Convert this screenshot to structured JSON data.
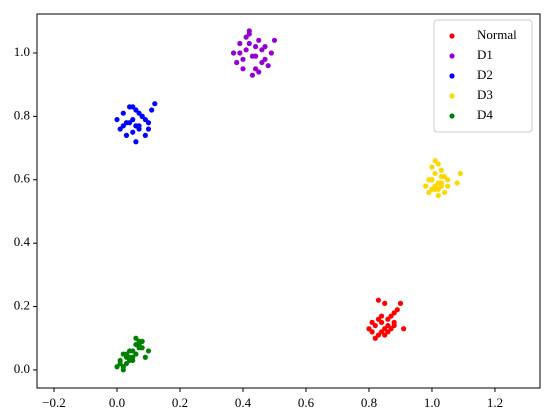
{
  "chart_data": {
    "type": "scatter",
    "xlim": [
      -0.254,
      1.343
    ],
    "ylim": [
      -0.057,
      1.123
    ],
    "xticks": [
      {
        "value": -0.2,
        "label": "−0.2"
      },
      {
        "value": 0,
        "label": "0.0"
      },
      0.2,
      0.4,
      0.6,
      0.8,
      {
        "value": 1,
        "label": "1.0"
      },
      1.2
    ],
    "yticks": [
      {
        "value": 0,
        "label": "0.0"
      },
      0.2,
      0.4,
      0.6,
      0.8,
      {
        "value": 1,
        "label": "1.0"
      }
    ],
    "legend": "upper right",
    "series": [
      {
        "name": "Normal",
        "color": "#ff0000",
        "x": [
          0.81,
          0.82,
          0.83,
          0.84,
          0.85,
          0.86,
          0.87,
          0.88,
          0.89,
          0.9,
          0.82,
          0.84,
          0.86,
          0.88,
          0.83,
          0.85,
          0.87,
          0.81,
          0.84,
          0.86,
          0.91,
          0.83,
          0.85,
          0.88,
          0.8
        ],
        "y": [
          0.12,
          0.14,
          0.11,
          0.15,
          0.13,
          0.16,
          0.17,
          0.15,
          0.19,
          0.21,
          0.1,
          0.12,
          0.14,
          0.18,
          0.22,
          0.21,
          0.13,
          0.15,
          0.17,
          0.12,
          0.13,
          0.16,
          0.11,
          0.14,
          0.13
        ]
      },
      {
        "name": "D1",
        "color": "#9400d3",
        "x": [
          0.37,
          0.38,
          0.39,
          0.4,
          0.41,
          0.42,
          0.43,
          0.44,
          0.45,
          0.46,
          0.47,
          0.48,
          0.49,
          0.5,
          0.4,
          0.42,
          0.44,
          0.46,
          0.41,
          0.43,
          0.45,
          0.39,
          0.47,
          0.42,
          0.44
        ],
        "y": [
          1.0,
          0.97,
          1.03,
          0.95,
          1.01,
          1.06,
          0.93,
          0.99,
          1.04,
          0.97,
          1.02,
          0.96,
          1.0,
          1.04,
          0.98,
          1.07,
          0.95,
          1.01,
          1.05,
          0.99,
          0.94,
          1.0,
          0.98,
          1.03,
          1.02
        ]
      },
      {
        "name": "D2",
        "color": "#0000ff",
        "x": [
          0.0,
          0.01,
          0.02,
          0.03,
          0.04,
          0.05,
          0.06,
          0.07,
          0.08,
          0.09,
          0.1,
          0.11,
          0.12,
          0.03,
          0.05,
          0.07,
          0.09,
          0.04,
          0.06,
          0.08,
          0.02,
          0.05,
          0.07,
          0.1,
          0.06
        ],
        "y": [
          0.79,
          0.76,
          0.81,
          0.74,
          0.78,
          0.83,
          0.72,
          0.77,
          0.8,
          0.79,
          0.76,
          0.82,
          0.84,
          0.78,
          0.75,
          0.81,
          0.74,
          0.83,
          0.77,
          0.8,
          0.77,
          0.79,
          0.76,
          0.78,
          0.82
        ]
      },
      {
        "name": "D3",
        "color": "#ffd700",
        "x": [
          0.98,
          0.99,
          1.0,
          1.01,
          1.02,
          1.03,
          1.04,
          1.05,
          1.0,
          1.01,
          1.02,
          1.03,
          0.99,
          1.0,
          1.02,
          1.04,
          1.08,
          1.09,
          1.01,
          1.03,
          1.0,
          1.02,
          1.01,
          1.05,
          1.03
        ],
        "y": [
          0.58,
          0.56,
          0.6,
          0.62,
          0.57,
          0.59,
          0.61,
          0.58,
          0.64,
          0.66,
          0.55,
          0.63,
          0.6,
          0.57,
          0.59,
          0.56,
          0.59,
          0.62,
          0.58,
          0.61,
          0.6,
          0.65,
          0.57,
          0.6,
          0.58
        ]
      },
      {
        "name": "D4",
        "color": "#008000",
        "x": [
          0.0,
          0.01,
          0.02,
          0.03,
          0.04,
          0.05,
          0.06,
          0.07,
          0.08,
          0.09,
          0.1,
          0.02,
          0.04,
          0.06,
          0.03,
          0.05,
          0.07,
          0.01,
          0.04,
          0.06,
          0.08,
          0.05,
          0.03,
          0.07,
          0.02
        ],
        "y": [
          0.01,
          0.03,
          0.05,
          0.02,
          0.04,
          0.06,
          0.08,
          0.09,
          0.07,
          0.04,
          0.06,
          0.0,
          0.03,
          0.1,
          0.05,
          0.04,
          0.07,
          0.02,
          0.06,
          0.05,
          0.09,
          0.03,
          0.04,
          0.08,
          0.01
        ]
      }
    ]
  }
}
